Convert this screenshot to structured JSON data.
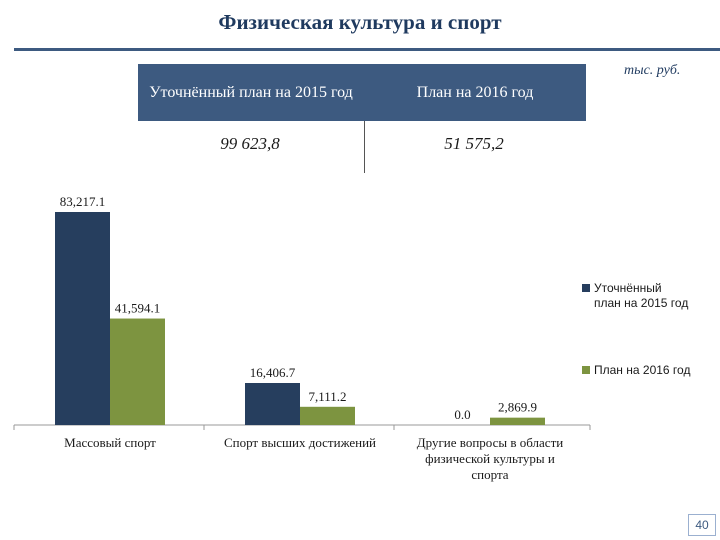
{
  "header": {
    "title": "Физическая культура и спорт",
    "units": "тыс. руб."
  },
  "table": {
    "col1_header": "Уточнённый план на 2015 год",
    "col2_header": "План на 2016 год",
    "col1_value": "99 623,8",
    "col2_value": "51 575,2"
  },
  "chart_data": {
    "type": "bar",
    "categories": [
      "Массовый спорт",
      "Спорт высших достижений",
      "Другие вопросы в области физической культуры и спорта"
    ],
    "series": [
      {
        "name": "Уточнённый план на 2015 год",
        "values": [
          83217.1,
          16406.7,
          0.0
        ],
        "labels": [
          "83,217.1",
          "16,406.7",
          "0.0"
        ],
        "color": "#263e5e"
      },
      {
        "name": "План на 2016 год",
        "values": [
          41594.1,
          7111.2,
          2869.9
        ],
        "labels": [
          "41,594.1",
          "7,111.2",
          "2,869.9"
        ],
        "color": "#7d9440"
      }
    ],
    "xlabel": "",
    "ylabel": "",
    "ylim": [
      0,
      83217.1
    ],
    "grid": false,
    "legend": "right"
  },
  "footer": {
    "page_number": "40"
  }
}
